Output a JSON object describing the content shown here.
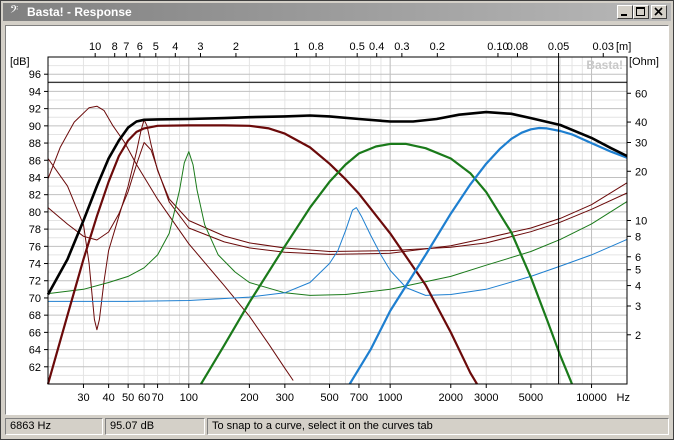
{
  "window": {
    "title": "Basta! - Response",
    "app_icon": "bass-clef-icon"
  },
  "status": {
    "frequency": "6863 Hz",
    "level": "95.07 dB",
    "hint": "To snap to a curve, select it on the curves tab"
  },
  "chart_data": {
    "type": "line",
    "title": "",
    "watermark": "Basta!",
    "x_scale": "log",
    "xlim": [
      20,
      15000
    ],
    "ylim_left": [
      60,
      98
    ],
    "ylim_right": [
      1,
      100
    ],
    "y_right_scale": "log",
    "left_unit": "[dB]",
    "right_unit": "[Ohm]",
    "bottom_unit": "Hz",
    "top_unit": "[m]",
    "bottom_ticks": [
      30,
      40,
      50,
      60,
      70,
      100,
      200,
      300,
      500,
      700,
      1000,
      2000,
      3000,
      5000,
      10000
    ],
    "bottom_tick_labels": [
      "30",
      "40",
      "50",
      "60",
      "70",
      "100",
      "200",
      "300",
      "500",
      "700",
      "1000",
      "2000",
      "3000",
      "5000",
      "10000"
    ],
    "top_ticks": [
      10,
      8,
      7,
      6,
      5,
      4,
      3,
      2,
      1,
      0.8,
      0.5,
      0.4,
      0.3,
      0.2,
      0.1,
      0.08,
      0.05,
      0.03
    ],
    "top_tick_labels": [
      "10",
      "8",
      "7",
      "6",
      "5",
      "4",
      "3",
      "2",
      "1",
      "0.8",
      "0.5",
      "0.4",
      "0.3",
      "0.2",
      "0.10",
      "0.08",
      "0.05",
      "0.03"
    ],
    "left_ticks": [
      62,
      64,
      66,
      68,
      70,
      72,
      74,
      76,
      78,
      80,
      82,
      84,
      86,
      88,
      90,
      92,
      94,
      96
    ],
    "right_ticks": [
      2,
      3,
      4,
      5,
      6,
      8,
      10,
      20,
      30,
      40,
      60
    ],
    "cursor": {
      "freq": 6863,
      "db": 95.07
    },
    "colors": {
      "sum": "#000000",
      "woofer": "#6b0a0a",
      "mid": "#1a7a1a",
      "tweeter": "#1e7fd0",
      "grid_major": "#c0c0c0",
      "grid_minor": "#e4e4e4"
    },
    "series": [
      {
        "key": "sum",
        "axis": "db",
        "width": 2.6,
        "points": [
          [
            20,
            70.4
          ],
          [
            25,
            74.5
          ],
          [
            30,
            79
          ],
          [
            35,
            83
          ],
          [
            40,
            86.2
          ],
          [
            45,
            88.3
          ],
          [
            50,
            89.8
          ],
          [
            55,
            90.5
          ],
          [
            60,
            90.7
          ],
          [
            70,
            90.75
          ],
          [
            100,
            90.8
          ],
          [
            150,
            90.9
          ],
          [
            200,
            91
          ],
          [
            300,
            91.1
          ],
          [
            400,
            91.2
          ],
          [
            500,
            91.1
          ],
          [
            700,
            90.8
          ],
          [
            1000,
            90.5
          ],
          [
            1300,
            90.5
          ],
          [
            1700,
            90.8
          ],
          [
            2200,
            91.3
          ],
          [
            3000,
            91.6
          ],
          [
            4000,
            91.4
          ],
          [
            5000,
            90.9
          ],
          [
            7000,
            90.1
          ],
          [
            10000,
            88.6
          ],
          [
            12500,
            87.4
          ],
          [
            15000,
            86.5
          ]
        ]
      },
      {
        "key": "woofer",
        "axis": "db",
        "width": 2.2,
        "points": [
          [
            20,
            60
          ],
          [
            25,
            68
          ],
          [
            30,
            74.5
          ],
          [
            35,
            79.5
          ],
          [
            40,
            83.5
          ],
          [
            45,
            86.5
          ],
          [
            50,
            88.3
          ],
          [
            55,
            89.3
          ],
          [
            60,
            89.7
          ],
          [
            70,
            90
          ],
          [
            100,
            90.05
          ],
          [
            150,
            90.05
          ],
          [
            200,
            90
          ],
          [
            250,
            89.7
          ],
          [
            300,
            89.1
          ],
          [
            400,
            87.5
          ],
          [
            500,
            85.6
          ],
          [
            600,
            83.8
          ],
          [
            700,
            82.1
          ],
          [
            1000,
            77.5
          ],
          [
            1500,
            71.5
          ],
          [
            2000,
            66
          ],
          [
            2500,
            61.3
          ],
          [
            2700,
            60
          ]
        ]
      },
      {
        "key": "mid",
        "axis": "db",
        "width": 2.2,
        "points": [
          [
            115,
            60
          ],
          [
            150,
            64.5
          ],
          [
            200,
            69.5
          ],
          [
            300,
            76
          ],
          [
            400,
            80.5
          ],
          [
            500,
            83.5
          ],
          [
            600,
            85.5
          ],
          [
            700,
            86.8
          ],
          [
            850,
            87.6
          ],
          [
            1000,
            87.9
          ],
          [
            1200,
            87.9
          ],
          [
            1500,
            87.4
          ],
          [
            2000,
            86.2
          ],
          [
            2500,
            84.5
          ],
          [
            3000,
            82.3
          ],
          [
            4000,
            77.6
          ],
          [
            5000,
            72.4
          ],
          [
            6000,
            67.5
          ],
          [
            7000,
            63.3
          ],
          [
            8000,
            60
          ]
        ]
      },
      {
        "key": "tweeter",
        "axis": "db",
        "width": 2.2,
        "points": [
          [
            630,
            60
          ],
          [
            800,
            64
          ],
          [
            1000,
            68.5
          ],
          [
            1500,
            75
          ],
          [
            2000,
            79.8
          ],
          [
            2500,
            83.2
          ],
          [
            3000,
            85.6
          ],
          [
            3500,
            87.3
          ],
          [
            4000,
            88.5
          ],
          [
            4500,
            89.2
          ],
          [
            5000,
            89.6
          ],
          [
            5500,
            89.75
          ],
          [
            6000,
            89.7
          ],
          [
            7000,
            89.4
          ],
          [
            8000,
            89
          ],
          [
            10000,
            88
          ],
          [
            12500,
            87
          ],
          [
            15000,
            86.3
          ]
        ]
      },
      {
        "key": "woofer",
        "axis": "db",
        "width": 1,
        "points": [
          [
            20,
            86.2
          ],
          [
            25,
            83
          ],
          [
            30,
            78.5
          ],
          [
            32,
            74
          ],
          [
            34,
            67.5
          ],
          [
            35,
            66.3
          ],
          [
            36,
            67.5
          ],
          [
            38,
            72
          ],
          [
            40,
            75.5
          ],
          [
            45,
            79.5
          ],
          [
            50,
            83
          ],
          [
            55,
            87
          ],
          [
            58,
            89.5
          ],
          [
            60,
            90.7
          ],
          [
            62,
            90
          ],
          [
            65,
            87.8
          ],
          [
            70,
            84.8
          ],
          [
            80,
            81.5
          ],
          [
            100,
            79
          ],
          [
            150,
            77.2
          ],
          [
            200,
            76.4
          ],
          [
            300,
            75.8
          ],
          [
            500,
            75.4
          ],
          [
            1000,
            75.5
          ],
          [
            2000,
            75.9
          ],
          [
            3000,
            76.4
          ],
          [
            5000,
            77.7
          ],
          [
            7000,
            78.8
          ],
          [
            10000,
            80.3
          ],
          [
            15000,
            82.2
          ]
        ]
      },
      {
        "key": "woofer",
        "axis": "ohm",
        "width": 1,
        "points": [
          [
            20,
            18
          ],
          [
            23,
            28
          ],
          [
            27,
            40
          ],
          [
            32,
            49
          ],
          [
            35,
            50
          ],
          [
            38,
            47
          ],
          [
            42,
            38
          ],
          [
            48,
            30
          ],
          [
            55,
            22
          ],
          [
            70,
            13.5
          ],
          [
            100,
            7.2
          ],
          [
            150,
            4
          ],
          [
            200,
            2.6
          ],
          [
            250,
            1.75
          ],
          [
            300,
            1.25
          ],
          [
            330,
            1.05
          ]
        ]
      },
      {
        "key": "woofer",
        "axis": "ohm",
        "width": 1,
        "points": [
          [
            20,
            12
          ],
          [
            25,
            9.5
          ],
          [
            30,
            8
          ],
          [
            35,
            7.6
          ],
          [
            40,
            8.5
          ],
          [
            45,
            11
          ],
          [
            50,
            15
          ],
          [
            55,
            22
          ],
          [
            60,
            30
          ],
          [
            65,
            27
          ],
          [
            70,
            20.5
          ],
          [
            80,
            13
          ],
          [
            100,
            9
          ],
          [
            150,
            7.4
          ],
          [
            200,
            6.8
          ],
          [
            300,
            6.4
          ],
          [
            500,
            6.2
          ],
          [
            1000,
            6.3
          ],
          [
            2000,
            7
          ],
          [
            3000,
            7.8
          ],
          [
            5000,
            9
          ],
          [
            7000,
            10.3
          ],
          [
            10000,
            12.5
          ],
          [
            15000,
            17
          ]
        ]
      },
      {
        "key": "mid",
        "axis": "db",
        "width": 1,
        "points": [
          [
            20,
            70.5
          ],
          [
            30,
            71
          ],
          [
            40,
            71.8
          ],
          [
            50,
            72.5
          ],
          [
            60,
            73.5
          ],
          [
            70,
            75
          ],
          [
            80,
            77.5
          ],
          [
            90,
            82.5
          ],
          [
            95,
            85.7
          ],
          [
            100,
            87
          ],
          [
            105,
            85.5
          ],
          [
            110,
            82.5
          ],
          [
            120,
            78.5
          ],
          [
            140,
            75
          ],
          [
            170,
            73
          ],
          [
            200,
            71.8
          ],
          [
            300,
            70.6
          ],
          [
            400,
            70.3
          ],
          [
            600,
            70.4
          ],
          [
            1000,
            71
          ],
          [
            2000,
            72.5
          ],
          [
            3000,
            73.8
          ],
          [
            5000,
            75.4
          ],
          [
            7000,
            76.8
          ],
          [
            10000,
            78.6
          ],
          [
            15000,
            81.2
          ]
        ]
      },
      {
        "key": "tweeter",
        "axis": "db",
        "width": 1,
        "points": [
          [
            20,
            69.6
          ],
          [
            50,
            69.6
          ],
          [
            100,
            69.7
          ],
          [
            200,
            70.1
          ],
          [
            300,
            70.6
          ],
          [
            400,
            71.8
          ],
          [
            500,
            74
          ],
          [
            550,
            75.5
          ],
          [
            600,
            77.8
          ],
          [
            650,
            80.2
          ],
          [
            680,
            80.5
          ],
          [
            720,
            79.5
          ],
          [
            800,
            77.3
          ],
          [
            900,
            75
          ],
          [
            1000,
            73.2
          ],
          [
            1200,
            71.2
          ],
          [
            1500,
            70.3
          ],
          [
            2000,
            70.4
          ],
          [
            3000,
            71
          ],
          [
            5000,
            72.5
          ],
          [
            7000,
            73.7
          ],
          [
            10000,
            75
          ],
          [
            15000,
            76.8
          ]
        ]
      }
    ]
  }
}
